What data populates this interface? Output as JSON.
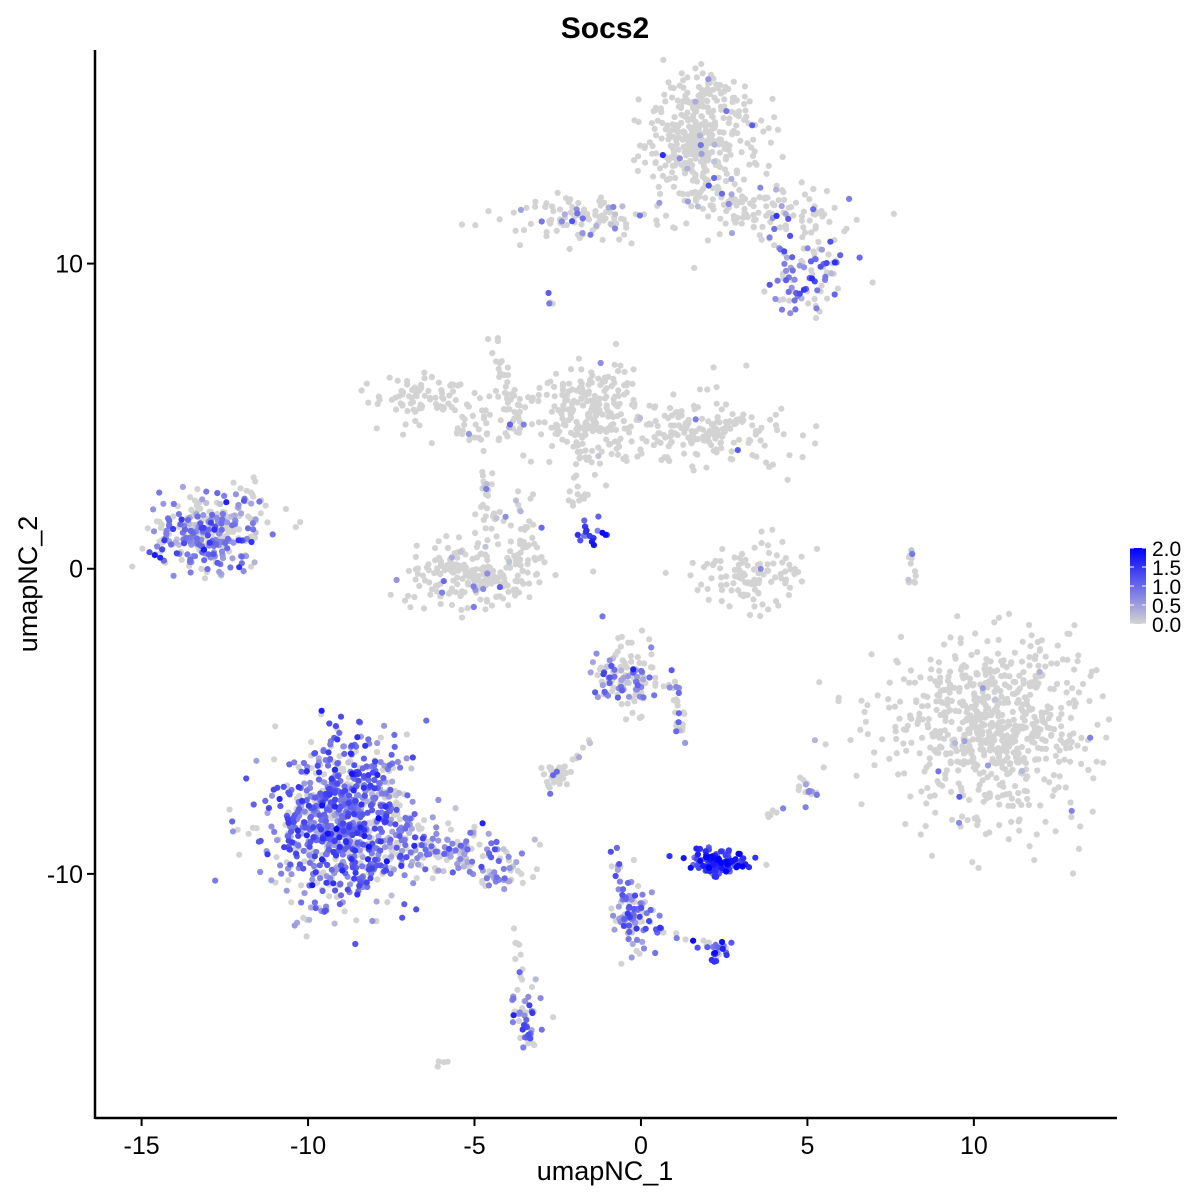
{
  "chart_data": {
    "type": "scatter",
    "title": "Socs2",
    "xlabel": "umapNC_1",
    "ylabel": "umapNC_2",
    "xlim": [
      -16.4,
      14.3
    ],
    "ylim": [
      -18.0,
      17.0
    ],
    "xticks": [
      -15,
      -10,
      -5,
      0,
      5,
      10
    ],
    "xtick_labels": [
      "-15",
      "-10",
      "-5",
      "0",
      "5",
      "10"
    ],
    "yticks": [
      -10,
      0,
      10
    ],
    "ytick_labels": [
      "-10",
      "0",
      "10"
    ],
    "grid": false,
    "legend": {
      "placement": "right",
      "type": "colorbar",
      "values": [
        0.0,
        0.5,
        1.0,
        1.5,
        2.0
      ],
      "labels": [
        "0.0",
        "0.5",
        "1.0",
        "1.5",
        "2.0"
      ],
      "low_color": "#d3d3d3",
      "high_color": "#0000ff"
    },
    "color_scale": {
      "min": 0.0,
      "max": 2.0,
      "low": "#d3d3d3",
      "high": "#0000ff"
    },
    "clusters": [
      {
        "cx": 1.9,
        "cy": 14.3,
        "sx": 0.85,
        "sy": 1.1,
        "n": 380,
        "expr_frac": 0.03,
        "expr_mean": 0.6
      },
      {
        "cx": 4.3,
        "cy": 11.7,
        "sx": 1.1,
        "sy": 0.5,
        "n": 90,
        "expr_frac": 0.12,
        "expr_mean": 0.8
      },
      {
        "cx": -1.5,
        "cy": 11.5,
        "sx": 1.3,
        "sy": 0.35,
        "n": 110,
        "expr_frac": 0.12,
        "expr_mean": 0.6
      },
      {
        "cx": 5.1,
        "cy": 9.9,
        "sx": 0.6,
        "sy": 0.5,
        "n": 60,
        "expr_frac": 0.55,
        "expr_mean": 0.9
      },
      {
        "cx": 4.8,
        "cy": 9.0,
        "sx": 0.5,
        "sy": 0.3,
        "n": 30,
        "expr_frac": 0.6,
        "expr_mean": 1.0
      },
      {
        "cx": -6.5,
        "cy": 5.5,
        "sx": 0.9,
        "sy": 0.5,
        "n": 80,
        "expr_frac": 0.02,
        "expr_mean": 0.5
      },
      {
        "cx": -4.0,
        "cy": 4.8,
        "sx": 1.2,
        "sy": 0.6,
        "n": 70,
        "expr_frac": 0.04,
        "expr_mean": 0.6
      },
      {
        "cx": -1.4,
        "cy": 5.3,
        "sx": 0.6,
        "sy": 0.8,
        "n": 190,
        "expr_frac": 0.02,
        "expr_mean": 0.5
      },
      {
        "cx": 1.5,
        "cy": 4.5,
        "sx": 1.4,
        "sy": 0.55,
        "n": 200,
        "expr_frac": 0.02,
        "expr_mean": 0.5
      },
      {
        "cx": -5.0,
        "cy": -0.2,
        "sx": 0.95,
        "sy": 0.5,
        "n": 230,
        "expr_frac": 0.06,
        "expr_mean": 0.6
      },
      {
        "cx": -3.8,
        "cy": 1.2,
        "sx": 0.45,
        "sy": 0.8,
        "n": 40,
        "expr_frac": 0.2,
        "expr_mean": 0.6
      },
      {
        "cx": -13.0,
        "cy": 1.2,
        "sx": 0.85,
        "sy": 0.65,
        "n": 300,
        "expr_frac": 0.55,
        "expr_mean": 0.8
      },
      {
        "cx": -11.8,
        "cy": 2.3,
        "sx": 0.35,
        "sy": 0.3,
        "n": 15,
        "expr_frac": 0.4,
        "expr_mean": 0.7
      },
      {
        "cx": -1.5,
        "cy": 1.1,
        "sx": 0.3,
        "sy": 0.25,
        "n": 18,
        "expr_frac": 0.9,
        "expr_mean": 1.5
      },
      {
        "cx": 3.2,
        "cy": -0.3,
        "sx": 1.0,
        "sy": 0.5,
        "n": 110,
        "expr_frac": 0.01,
        "expr_mean": 0.5
      },
      {
        "cx": 10.5,
        "cy": -5.2,
        "sx": 1.5,
        "sy": 1.4,
        "n": 700,
        "expr_frac": 0.02,
        "expr_mean": 0.6
      },
      {
        "cx": -0.4,
        "cy": -3.6,
        "sx": 0.5,
        "sy": 0.6,
        "n": 120,
        "expr_frac": 0.45,
        "expr_mean": 0.8
      },
      {
        "cx": -9.0,
        "cy": -8.3,
        "sx": 1.05,
        "sy": 1.3,
        "n": 900,
        "expr_frac": 0.75,
        "expr_mean": 0.95
      },
      {
        "cx": -6.0,
        "cy": -9.3,
        "sx": 1.0,
        "sy": 0.35,
        "n": 140,
        "expr_frac": 0.6,
        "expr_mean": 0.75
      },
      {
        "cx": -4.3,
        "cy": -10.1,
        "sx": 0.4,
        "sy": 0.25,
        "n": 30,
        "expr_frac": 0.6,
        "expr_mean": 0.8
      },
      {
        "cx": -2.5,
        "cy": -6.8,
        "sx": 0.3,
        "sy": 0.2,
        "n": 35,
        "expr_frac": 0.08,
        "expr_mean": 0.5
      },
      {
        "cx": 2.4,
        "cy": -9.6,
        "sx": 0.45,
        "sy": 0.2,
        "n": 120,
        "expr_frac": 0.95,
        "expr_mean": 1.45
      },
      {
        "cx": -0.2,
        "cy": -11.3,
        "sx": 0.3,
        "sy": 0.7,
        "n": 70,
        "expr_frac": 0.7,
        "expr_mean": 0.8
      },
      {
        "cx": 2.3,
        "cy": -12.6,
        "sx": 0.2,
        "sy": 0.2,
        "n": 20,
        "expr_frac": 0.85,
        "expr_mean": 1.3
      },
      {
        "cx": -3.4,
        "cy": -14.6,
        "sx": 0.22,
        "sy": 0.5,
        "n": 45,
        "expr_frac": 0.7,
        "expr_mean": 0.9
      },
      {
        "cx": 5.0,
        "cy": -7.3,
        "sx": 0.15,
        "sy": 0.25,
        "n": 15,
        "expr_frac": 0.6,
        "expr_mean": 0.7
      },
      {
        "cx": 8.1,
        "cy": 0.2,
        "sx": 0.12,
        "sy": 0.5,
        "n": 12,
        "expr_frac": 0.2,
        "expr_mean": 0.6
      },
      {
        "cx": -5.9,
        "cy": -16.2,
        "sx": 0.1,
        "sy": 0.1,
        "n": 4,
        "expr_frac": 0.0,
        "expr_mean": 0.0
      },
      {
        "cx": -2.7,
        "cy": 8.7,
        "sx": 0.08,
        "sy": 0.12,
        "n": 4,
        "expr_frac": 0.5,
        "expr_mean": 0.6
      }
    ],
    "paths": [
      {
        "x0": -4.5,
        "y0": 7.5,
        "x1": -3.5,
        "y1": 4.5,
        "n": 30,
        "jitter": 0.12,
        "expr_frac": 0.03,
        "expr_mean": 0.5
      },
      {
        "x0": -4.8,
        "y0": 3.6,
        "x1": -4.3,
        "y1": 1.3,
        "n": 20,
        "jitter": 0.15,
        "expr_frac": 0.2,
        "expr_mean": 0.6
      },
      {
        "x0": -1.8,
        "y0": 4.2,
        "x1": -2.1,
        "y1": 2.2,
        "n": 15,
        "jitter": 0.12,
        "expr_frac": 0.0,
        "expr_mean": 0.0
      },
      {
        "x0": 1.2,
        "y0": 13.0,
        "x1": 3.6,
        "y1": 11.1,
        "n": 40,
        "jitter": 0.3,
        "expr_frac": 0.1,
        "expr_mean": 0.7
      },
      {
        "x0": 1.0,
        "y0": -3.5,
        "x1": 1.2,
        "y1": -5.6,
        "n": 25,
        "jitter": 0.12,
        "expr_frac": 0.4,
        "expr_mean": 0.8
      },
      {
        "x0": -0.8,
        "y0": -9.2,
        "x1": -0.3,
        "y1": -11.8,
        "n": 25,
        "jitter": 0.08,
        "expr_frac": 0.6,
        "expr_mean": 0.8
      },
      {
        "x0": 0.1,
        "y0": -11.6,
        "x1": 2.3,
        "y1": -12.5,
        "n": 18,
        "jitter": 0.08,
        "expr_frac": 0.6,
        "expr_mean": 1.1
      },
      {
        "x0": -3.8,
        "y0": -11.7,
        "x1": -3.6,
        "y1": -14.0,
        "n": 10,
        "jitter": 0.08,
        "expr_frac": 0.0,
        "expr_mean": 0.0
      },
      {
        "x0": -1.5,
        "y0": -5.6,
        "x1": -2.3,
        "y1": -6.6,
        "n": 8,
        "jitter": 0.06,
        "expr_frac": 0.1,
        "expr_mean": 0.5
      },
      {
        "x0": 4.3,
        "y0": -7.8,
        "x1": 3.5,
        "y1": -8.3,
        "n": 6,
        "jitter": 0.06,
        "expr_frac": 0.5,
        "expr_mean": 0.6
      },
      {
        "x0": -7.7,
        "y0": -7.2,
        "x1": -7.3,
        "y1": -9.0,
        "n": 25,
        "jitter": 0.15,
        "expr_frac": 0.4,
        "expr_mean": 0.7
      },
      {
        "x0": -1.5,
        "y0": 2.5,
        "x1": -2.3,
        "y1": 2.0,
        "n": 6,
        "jitter": 0.05,
        "expr_frac": 0.0,
        "expr_mean": 0.0
      },
      {
        "x0": -1.7,
        "y0": -3.9,
        "x1": -0.7,
        "y1": -2.8,
        "n": 6,
        "jitter": 0.05,
        "expr_frac": 0.2,
        "expr_mean": 0.5
      }
    ]
  }
}
